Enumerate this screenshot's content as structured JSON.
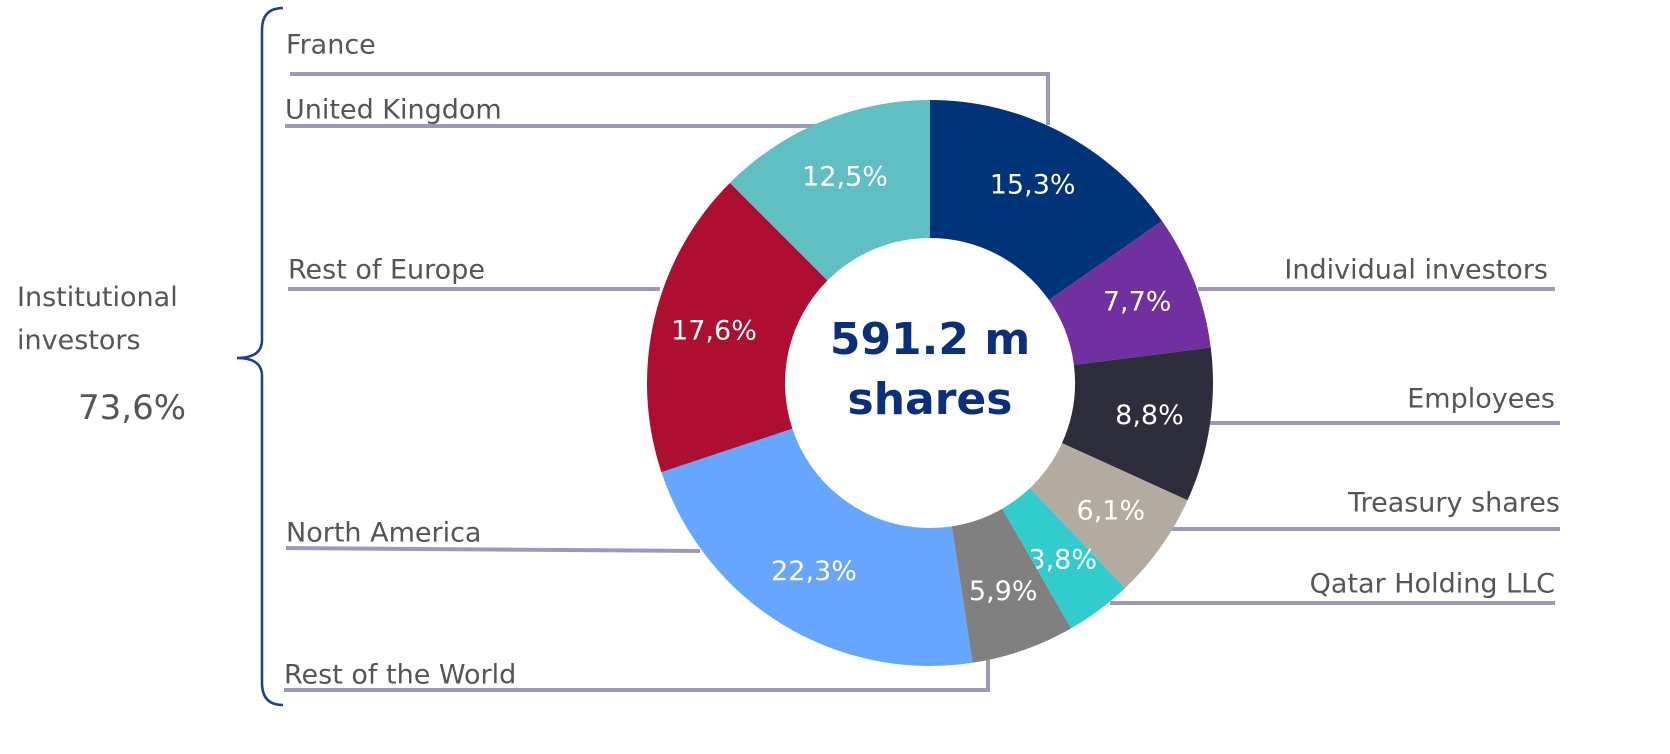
{
  "chart_data": {
    "type": "donut",
    "center_label": "591.2 m shares",
    "categories": [
      "France",
      "Individual investors",
      "Employees",
      "Treasury shares",
      "Qatar Holding LLC",
      "Rest of the World",
      "North America",
      "Rest of Europe",
      "United Kingdom"
    ],
    "values": [
      15.3,
      7.7,
      8.8,
      6.1,
      3.8,
      5.9,
      22.3,
      17.6,
      12.5
    ],
    "value_labels": [
      "15,3%",
      "7,7%",
      "8,8%",
      "6,1%",
      "3,8%",
      "5,9%",
      "22,3%",
      "17,6%",
      "12,5%"
    ],
    "colors": [
      "#003478",
      "#7030a0",
      "#2d2d3c",
      "#b3aaa0",
      "#33cccc",
      "#808080",
      "#66a6ff",
      "#ae0e30",
      "#5fbfc2"
    ],
    "group": {
      "label": "Institutional investors",
      "value": 73.6,
      "value_label": "73,6%"
    }
  }
}
